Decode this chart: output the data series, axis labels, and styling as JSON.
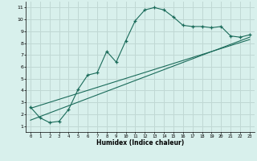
{
  "xlabel": "Humidex (Indice chaleur)",
  "bg_color": "#d8f0ec",
  "grid_color": "#c0d8d4",
  "line_color": "#1a6b5a",
  "xlim": [
    -0.5,
    23.5
  ],
  "ylim": [
    0.5,
    11.5
  ],
  "xticks": [
    0,
    1,
    2,
    3,
    4,
    5,
    6,
    7,
    8,
    9,
    10,
    11,
    12,
    13,
    14,
    15,
    16,
    17,
    18,
    19,
    20,
    21,
    22,
    23
  ],
  "yticks": [
    1,
    2,
    3,
    4,
    5,
    6,
    7,
    8,
    9,
    10,
    11
  ],
  "curve_x": [
    0,
    1,
    2,
    3,
    4,
    5,
    6,
    7,
    8,
    9,
    10,
    11,
    12,
    13,
    14,
    15,
    16,
    17,
    18,
    19,
    20,
    21,
    22,
    23
  ],
  "curve_y": [
    2.6,
    1.7,
    1.3,
    1.4,
    2.4,
    4.1,
    5.3,
    5.5,
    7.3,
    6.4,
    8.2,
    9.9,
    10.8,
    11.0,
    10.8,
    10.2,
    9.5,
    9.4,
    9.4,
    9.3,
    9.4,
    8.6,
    8.5,
    8.7
  ],
  "line1_x": [
    0,
    23
  ],
  "line1_y": [
    1.5,
    8.5
  ],
  "line2_x": [
    0,
    23
  ],
  "line2_y": [
    2.5,
    8.3
  ]
}
